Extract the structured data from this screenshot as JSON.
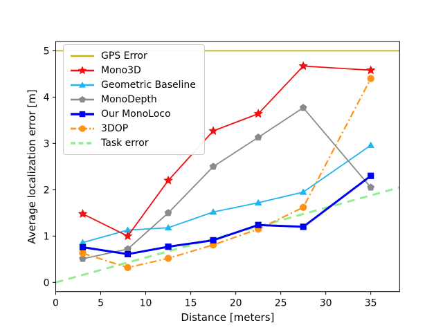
{
  "figure": {
    "background": "#ffffff",
    "spine_color": "#000000"
  },
  "chart_data": {
    "type": "line",
    "title": "",
    "xlabel": "Distance [meters]",
    "ylabel": "Average localization error [m]",
    "xlim": [
      0,
      38.2
    ],
    "ylim": [
      -0.2,
      5.2
    ],
    "xticks": [
      0,
      5,
      10,
      15,
      20,
      25,
      30,
      35
    ],
    "yticks": [
      0,
      1,
      2,
      3,
      4,
      5
    ],
    "grid": false,
    "legend_position": "upper-left",
    "x": [
      3,
      8,
      12.5,
      17.5,
      22.5,
      27.5,
      35
    ],
    "series": [
      {
        "name": "GPS Error",
        "color": "#c2b40c",
        "marker": "none",
        "linestyle": "solid",
        "linewidth": 1.8,
        "kind": "hline",
        "y": 5.0
      },
      {
        "name": "Mono3D",
        "color": "#f01010",
        "marker": "star",
        "linestyle": "solid",
        "linewidth": 1.8,
        "kind": "xy",
        "values": [
          1.48,
          1.0,
          2.2,
          3.27,
          3.64,
          4.67,
          4.58
        ]
      },
      {
        "name": "Geometric Baseline",
        "color": "#1fb5ee",
        "marker": "triangle",
        "linestyle": "solid",
        "linewidth": 1.8,
        "kind": "xy",
        "values": [
          0.86,
          1.13,
          1.18,
          1.52,
          1.72,
          1.95,
          2.96
        ]
      },
      {
        "name": "MonoDepth",
        "color": "#8a8a8a",
        "marker": "pentagon",
        "linestyle": "solid",
        "linewidth": 1.8,
        "kind": "xy",
        "values": [
          0.51,
          0.72,
          1.5,
          2.5,
          3.13,
          3.77,
          2.05
        ]
      },
      {
        "name": "Our MonoLoco",
        "color": "#0000f0",
        "marker": "square",
        "linestyle": "solid",
        "linewidth": 3,
        "kind": "xy",
        "values": [
          0.76,
          0.61,
          0.77,
          0.91,
          1.24,
          1.2,
          2.3
        ]
      },
      {
        "name": "3DOP",
        "color": "#ff9315",
        "marker": "circle",
        "linestyle": "dashdot",
        "linewidth": 2.2,
        "kind": "xy",
        "values": [
          0.63,
          0.32,
          0.52,
          0.81,
          1.15,
          1.62,
          4.4
        ]
      },
      {
        "name": "Task error",
        "color": "#90ee90",
        "marker": "none",
        "linestyle": "dashed",
        "linewidth": 3,
        "kind": "segment",
        "x": [
          0,
          38.2
        ],
        "y": [
          0.0,
          2.05
        ]
      }
    ],
    "draw_order": [
      0,
      6,
      2,
      3,
      1,
      5,
      4
    ]
  }
}
